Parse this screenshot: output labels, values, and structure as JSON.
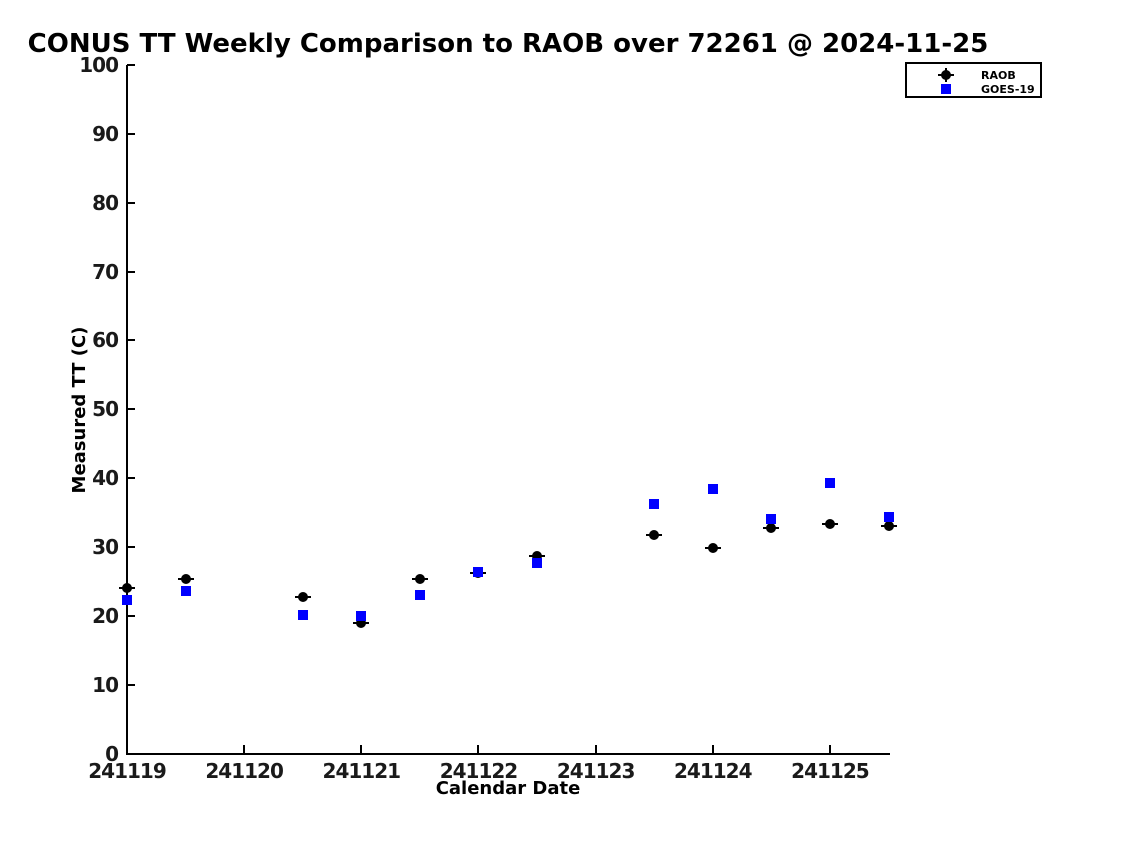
{
  "chart_data": {
    "type": "scatter",
    "title": "CONUS TT Weekly Comparison to RAOB over 72261 @ 2024-11-25",
    "xlabel": "Calendar Date",
    "ylabel": "Measured TT (C)",
    "xlim": [
      241119,
      241125.5
    ],
    "ylim": [
      0,
      100
    ],
    "xticks": [
      241119,
      241120,
      241121,
      241122,
      241123,
      241124,
      241125
    ],
    "yticks": [
      0,
      10,
      20,
      30,
      40,
      50,
      60,
      70,
      80,
      90,
      100
    ],
    "grid": false,
    "background_color": "#ffffff",
    "axis_color": "#000000",
    "legend": {
      "position": "upper-right",
      "entries": [
        {
          "label": "RAOB",
          "marker": "circle",
          "color": "#000000"
        },
        {
          "label": "GOES-19",
          "marker": "square",
          "color": "#0000ff"
        }
      ]
    },
    "series": [
      {
        "name": "RAOB",
        "marker": "circle",
        "color": "#000000",
        "error_caps": true,
        "x": [
          241119,
          241119.5,
          241120.5,
          241121,
          241121.5,
          241122,
          241122.5,
          241123.5,
          241124,
          241124.5,
          241125,
          241125.5
        ],
        "y": [
          24.1,
          25.4,
          22.7,
          19.0,
          25.4,
          26.2,
          28.7,
          31.7,
          29.8,
          32.8,
          33.4,
          33.0
        ]
      },
      {
        "name": "GOES-19",
        "marker": "square",
        "color": "#0000ff",
        "error_caps": false,
        "x": [
          241119,
          241119.5,
          241120.5,
          241121,
          241121.5,
          241122,
          241122.5,
          241123.5,
          241124,
          241124.5,
          241125,
          241125.5
        ],
        "y": [
          22.3,
          23.6,
          20.1,
          19.9,
          23.0,
          26.3,
          27.6,
          36.2,
          38.4,
          34.0,
          39.3,
          34.4
        ]
      }
    ]
  }
}
